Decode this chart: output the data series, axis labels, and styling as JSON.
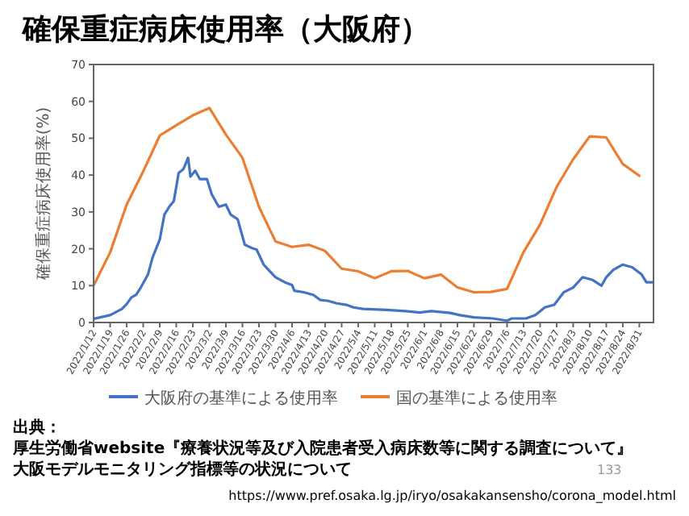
{
  "chart_data": {
    "type": "line",
    "title": "確保重症病床使用率（大阪府）",
    "ylabel": "確保重症病床使用率(%)",
    "xlim": [
      "2022-01-12",
      "2022-09-06"
    ],
    "xticks": [
      {
        "value": "2022-01-12",
        "label": "2022/1/12"
      },
      {
        "value": "2022-01-19",
        "label": "2022/1/19"
      },
      {
        "value": "2022-01-26",
        "label": "2022/1/26"
      },
      {
        "value": "2022-02-02",
        "label": "2022/2/2"
      },
      {
        "value": "2022-02-09",
        "label": "2022/2/9"
      },
      {
        "value": "2022-02-16",
        "label": "2022/2/16"
      },
      {
        "value": "2022-02-23",
        "label": "2022/2/23"
      },
      {
        "value": "2022-03-02",
        "label": "2022/3/2"
      },
      {
        "value": "2022-03-09",
        "label": "2022/3/9"
      },
      {
        "value": "2022-03-16",
        "label": "2022/3/16"
      },
      {
        "value": "2022-03-23",
        "label": "2022/3/23"
      },
      {
        "value": "2022-03-30",
        "label": "2022/3/30"
      },
      {
        "value": "2022-04-06",
        "label": "2022/4/6"
      },
      {
        "value": "2022-04-13",
        "label": "2022/4/13"
      },
      {
        "value": "2022-04-20",
        "label": "2022/4/20"
      },
      {
        "value": "2022-04-27",
        "label": "2022/4/27"
      },
      {
        "value": "2022-05-04",
        "label": "2022/5/4"
      },
      {
        "value": "2022-05-11",
        "label": "2022/5/11"
      },
      {
        "value": "2022-05-18",
        "label": "2022/5/18"
      },
      {
        "value": "2022-05-25",
        "label": "2022/5/25"
      },
      {
        "value": "2022-06-01",
        "label": "2022/6/1"
      },
      {
        "value": "2022-06-08",
        "label": "2022/6/8"
      },
      {
        "value": "2022-06-15",
        "label": "2022/6/15"
      },
      {
        "value": "2022-06-22",
        "label": "2022/6/22"
      },
      {
        "value": "2022-06-29",
        "label": "2022/6/29"
      },
      {
        "value": "2022-07-06",
        "label": "2022/7/6"
      },
      {
        "value": "2022-07-13",
        "label": "2022/7/13"
      },
      {
        "value": "2022-07-20",
        "label": "2022/7/20"
      },
      {
        "value": "2022-07-27",
        "label": "2022/7/27"
      },
      {
        "value": "2022-08-03",
        "label": "2022/8/3"
      },
      {
        "value": "2022-08-10",
        "label": "2022/8/10"
      },
      {
        "value": "2022-08-17",
        "label": "2022/8/17"
      },
      {
        "value": "2022-08-24",
        "label": "2022/8/24"
      },
      {
        "value": "2022-08-31",
        "label": "2022/8/31"
      }
    ],
    "ylim": [
      0,
      70
    ],
    "yticks": [
      0,
      10,
      20,
      30,
      40,
      50,
      60,
      70
    ],
    "legend": "bottom",
    "series": [
      {
        "name": "大阪府の基準による使用率",
        "color": "#4472c4",
        "x": [
          "2022-01-12",
          "2022-01-19",
          "2022-01-24",
          "2022-01-26",
          "2022-01-28",
          "2022-01-30",
          "2022-02-01",
          "2022-02-04",
          "2022-02-06",
          "2022-02-09",
          "2022-02-11",
          "2022-02-13",
          "2022-02-15",
          "2022-02-17",
          "2022-02-19",
          "2022-02-21",
          "2022-02-22",
          "2022-02-24",
          "2022-02-26",
          "2022-03-01",
          "2022-03-03",
          "2022-03-06",
          "2022-03-09",
          "2022-03-11",
          "2022-03-14",
          "2022-03-17",
          "2022-03-20",
          "2022-03-22",
          "2022-03-25",
          "2022-03-27",
          "2022-03-30",
          "2022-04-03",
          "2022-04-06",
          "2022-04-07",
          "2022-04-11",
          "2022-04-15",
          "2022-04-18",
          "2022-04-21",
          "2022-04-25",
          "2022-04-29",
          "2022-05-02",
          "2022-05-06",
          "2022-05-16",
          "2022-05-24",
          "2022-05-30",
          "2022-06-04",
          "2022-06-12",
          "2022-06-16",
          "2022-06-22",
          "2022-06-30",
          "2022-07-06",
          "2022-07-08",
          "2022-07-14",
          "2022-07-18",
          "2022-07-22",
          "2022-07-26",
          "2022-07-30",
          "2022-08-03",
          "2022-08-07",
          "2022-08-11",
          "2022-08-15",
          "2022-08-17",
          "2022-08-20",
          "2022-08-24",
          "2022-08-28",
          "2022-09-01",
          "2022-09-03",
          "2022-09-06"
        ],
        "values": [
          1,
          2,
          3.7,
          5,
          6.8,
          7.5,
          9.5,
          13,
          17.7,
          22.5,
          29.3,
          31.4,
          33,
          40.6,
          41.6,
          44.7,
          39.6,
          41.2,
          38.9,
          38.9,
          34.8,
          31.4,
          32,
          29.3,
          28,
          21.1,
          20.2,
          19.8,
          15.7,
          14.3,
          12.3,
          10.9,
          10.2,
          8.6,
          8.2,
          7.5,
          6.1,
          5.9,
          5.2,
          4.8,
          4.1,
          3.7,
          3.4,
          3.1,
          2.7,
          3.1,
          2.6,
          2,
          1.4,
          1.1,
          0.5,
          1.1,
          1.1,
          2,
          4.1,
          4.8,
          8.2,
          9.5,
          12.3,
          11.6,
          10,
          12.3,
          14.3,
          15.7,
          15,
          13,
          10.9,
          10.9
        ]
      },
      {
        "name": "国の基準による使用率",
        "color": "#ed7d31",
        "x": [
          "2022-01-12",
          "2022-01-19",
          "2022-01-26",
          "2022-02-02",
          "2022-02-09",
          "2022-02-16",
          "2022-02-23",
          "2022-03-02",
          "2022-03-09",
          "2022-03-16",
          "2022-03-23",
          "2022-03-30",
          "2022-04-06",
          "2022-04-13",
          "2022-04-20",
          "2022-04-27",
          "2022-05-04",
          "2022-05-11",
          "2022-05-18",
          "2022-05-25",
          "2022-06-01",
          "2022-06-08",
          "2022-06-15",
          "2022-06-22",
          "2022-06-29",
          "2022-07-06",
          "2022-07-13",
          "2022-07-20",
          "2022-07-27",
          "2022-08-03",
          "2022-08-10",
          "2022-08-17",
          "2022-08-24",
          "2022-08-31"
        ],
        "values": [
          10,
          19,
          32,
          41,
          50.7,
          53.5,
          56.2,
          58.2,
          51,
          44.7,
          31.4,
          22,
          20.5,
          21.1,
          19.4,
          14.6,
          13.9,
          12,
          13.9,
          14,
          12,
          13,
          9.5,
          8.2,
          8.3,
          9.1,
          19.1,
          26.6,
          36.8,
          44.3,
          50.5,
          50.2,
          43,
          39.8
        ]
      }
    ],
    "annotations": [
      "出典：",
      "厚生労働省website『療養状況等及び入院患者受入病床数等に関する調査について』",
      "大阪モデルモニタリング指標等の状況について",
      "133",
      "https://www.pref.osaka.lg.jp/iryo/osakakansensho/corona_model.html"
    ]
  }
}
